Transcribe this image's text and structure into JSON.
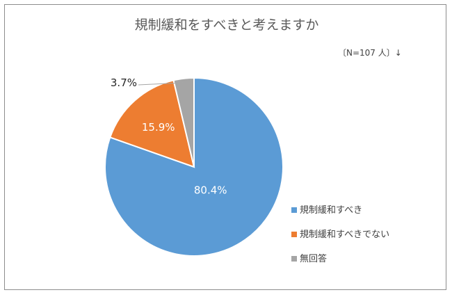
{
  "chart_data": {
    "type": "pie",
    "title": "規制緩和をすべきと考えますか",
    "note": "〔N=107 人〕↓",
    "categories": [
      "規制緩和すべき",
      "規制緩和すべきでない",
      "無回答"
    ],
    "values": [
      80.4,
      15.9,
      3.7
    ],
    "data_labels": [
      "80.4%",
      "15.9%",
      "3.7%"
    ],
    "colors": [
      "#5b9bd5",
      "#ed7d31",
      "#a5a5a5"
    ],
    "legend_position": "right",
    "unit": "%"
  }
}
